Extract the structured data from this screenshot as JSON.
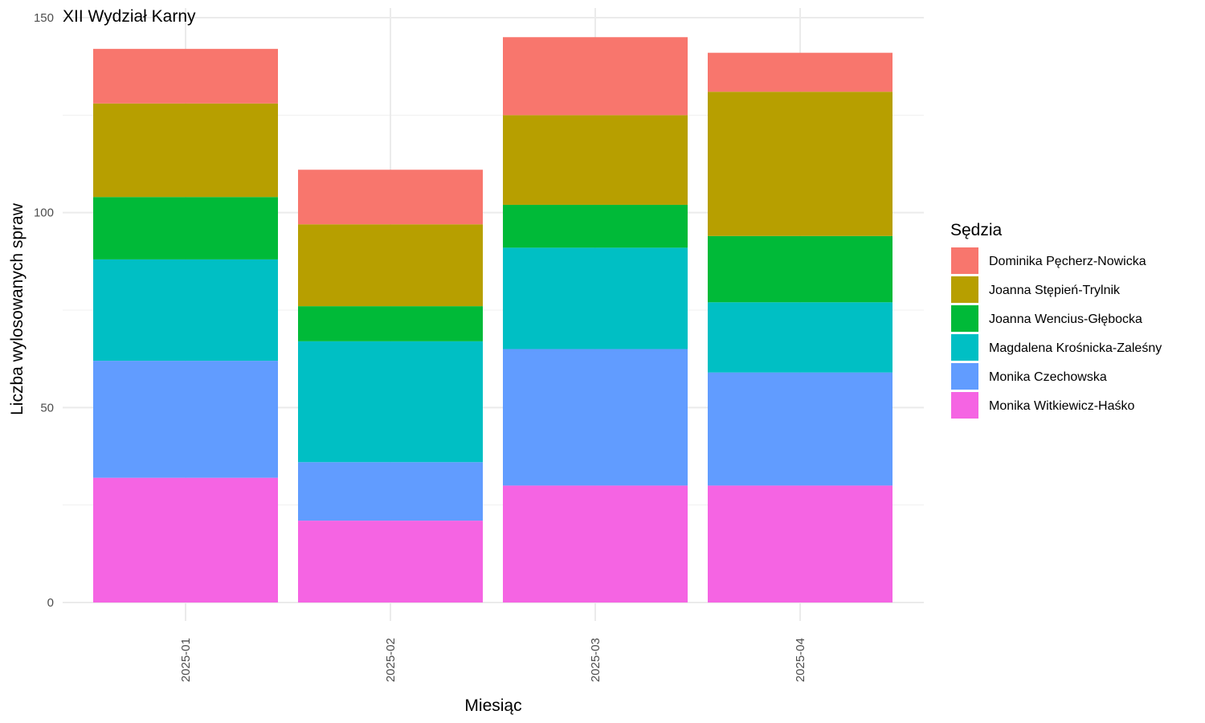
{
  "chart_data": {
    "type": "bar",
    "stacked": true,
    "title": "XII Wydział Karny",
    "xlabel": "Miesiąc",
    "ylabel": "Liczba wylosowanych spraw",
    "categories": [
      "2025-01",
      "2025-02",
      "2025-03",
      "2025-04"
    ],
    "ylim": [
      0,
      150
    ],
    "yticks": [
      0,
      50,
      100,
      150
    ],
    "grid": true,
    "legend": {
      "title": "Sędzia",
      "position": "right"
    },
    "series": [
      {
        "name": "Monika Witkiewicz-Haśko",
        "color": "#F564E3",
        "values": [
          32,
          21,
          30,
          30
        ]
      },
      {
        "name": "Monika Czechowska",
        "color": "#619CFF",
        "values": [
          30,
          15,
          35,
          29
        ]
      },
      {
        "name": "Magdalena Krośnicka-Zaleśny",
        "color": "#00BFC4",
        "values": [
          26,
          31,
          26,
          18
        ]
      },
      {
        "name": "Joanna Wencius-Głębocka",
        "color": "#00BA38",
        "values": [
          16,
          9,
          11,
          17
        ]
      },
      {
        "name": "Joanna Stępień-Trylnik",
        "color": "#B79F00",
        "values": [
          24,
          21,
          23,
          37
        ]
      },
      {
        "name": "Dominika Pęcherz-Nowicka",
        "color": "#F8766D",
        "values": [
          14,
          14,
          20,
          10
        ]
      }
    ]
  }
}
